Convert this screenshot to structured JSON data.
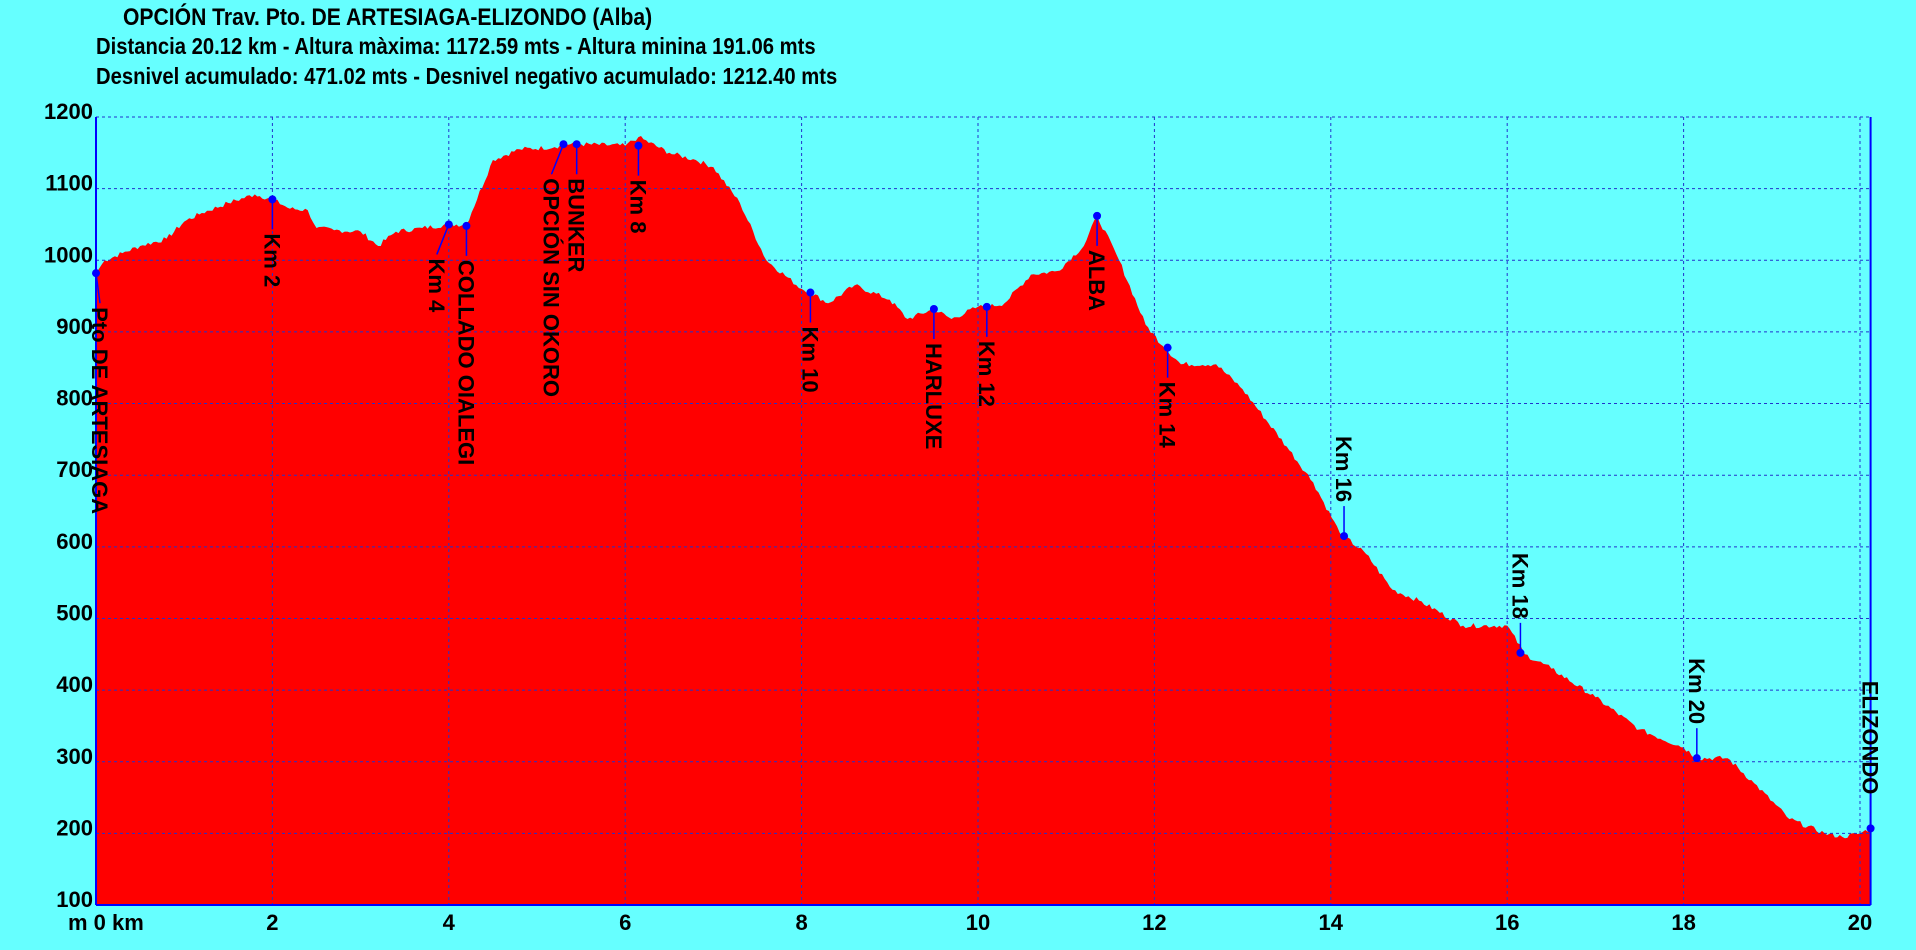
{
  "header": {
    "title": "OPCIÓN Trav. Pto. DE ARTESIAGA-ELIZONDO (Alba)",
    "line2": "Distancia 20.12 km - Altura màxima: 1172.59 mts - Altura minina 191.06 mts",
    "line3": "Desnivel acumulado: 471.02 mts - Desnivel negativo acumulado: 1212.40 mts"
  },
  "chart_data": {
    "type": "area",
    "title": "OPCIÓN Trav. Pto. DE ARTESIAGA-ELIZONDO (Alba)",
    "xlabel": "km",
    "ylabel": "m",
    "x_first_tick_label": "m 0 km",
    "xlim": [
      0,
      20.12
    ],
    "ylim": [
      100,
      1200
    ],
    "xticks": [
      0,
      2,
      4,
      6,
      8,
      10,
      12,
      14,
      16,
      18,
      20
    ],
    "yticks": [
      100,
      200,
      300,
      400,
      500,
      600,
      700,
      800,
      900,
      1000,
      1100,
      1200
    ],
    "grid": true,
    "colors": {
      "background": "#66ffff",
      "fill": "#ff0000",
      "grid": "#2233cc",
      "axis": "#0000ff",
      "marker": "#0000ff"
    },
    "x": [
      0,
      0.1,
      0.3,
      0.5,
      0.8,
      1.0,
      1.2,
      1.5,
      1.8,
      2.0,
      2.2,
      2.4,
      2.5,
      2.7,
      3.0,
      3.2,
      3.4,
      3.7,
      4.0,
      4.2,
      4.5,
      4.8,
      5.2,
      5.3,
      5.5,
      6.0,
      6.15,
      6.5,
      6.8,
      7.0,
      7.3,
      7.6,
      8.0,
      8.1,
      8.3,
      8.6,
      9.0,
      9.2,
      9.5,
      9.7,
      10.0,
      10.1,
      10.3,
      10.6,
      10.9,
      11.2,
      11.35,
      11.6,
      11.9,
      12.1,
      12.3,
      12.7,
      13.0,
      13.5,
      13.8,
      14.1,
      14.4,
      14.7,
      15.0,
      15.5,
      16.0,
      16.2,
      16.5,
      17.0,
      17.5,
      18.0,
      18.15,
      18.5,
      18.8,
      19.2,
      19.6,
      19.8,
      20.0,
      20.12
    ],
    "y": [
      982,
      1000,
      1010,
      1020,
      1030,
      1054,
      1066,
      1080,
      1092,
      1085,
      1072,
      1070,
      1045,
      1042,
      1040,
      1020,
      1040,
      1045,
      1050,
      1050,
      1140,
      1155,
      1158,
      1162,
      1162,
      1160,
      1172,
      1150,
      1140,
      1130,
      1080,
      1000,
      960,
      955,
      940,
      965,
      945,
      918,
      932,
      918,
      935,
      935,
      940,
      980,
      985,
      1020,
      1062,
      1000,
      910,
      880,
      855,
      855,
      820,
      740,
      690,
      620,
      590,
      540,
      525,
      490,
      490,
      450,
      430,
      390,
      345,
      320,
      305,
      305,
      270,
      220,
      200,
      195,
      200,
      207
    ],
    "waypoints": [
      {
        "label": "Pto DE ARTESIAGA",
        "km": 0,
        "elev": 982,
        "side": "below"
      },
      {
        "label": "Km  2",
        "km": 2.0,
        "elev": 1085,
        "side": "below"
      },
      {
        "label": "Km  4",
        "km": 4.0,
        "elev": 1050,
        "side": "below"
      },
      {
        "label": "COLLADO OIALEGI",
        "km": 4.2,
        "elev": 1048,
        "side": "below"
      },
      {
        "label": "OPCIÓN SIN OKORO",
        "km": 5.3,
        "elev": 1162,
        "side": "below"
      },
      {
        "label": "BUNKER",
        "km": 5.45,
        "elev": 1162,
        "side": "below"
      },
      {
        "label": "Km  8",
        "km": 6.15,
        "elev": 1160,
        "side": "below"
      },
      {
        "label": "Km 10",
        "km": 8.1,
        "elev": 955,
        "side": "below"
      },
      {
        "label": "HARLUXE",
        "km": 9.5,
        "elev": 932,
        "side": "below"
      },
      {
        "label": "Km 12",
        "km": 10.1,
        "elev": 935,
        "side": "below"
      },
      {
        "label": "ALBA",
        "km": 11.35,
        "elev": 1062,
        "side": "below"
      },
      {
        "label": "Km 14",
        "km": 12.15,
        "elev": 878,
        "side": "below"
      },
      {
        "label": "Km 16",
        "km": 14.15,
        "elev": 615,
        "side": "above"
      },
      {
        "label": "Km 18",
        "km": 16.15,
        "elev": 452,
        "side": "above"
      },
      {
        "label": "Km 20",
        "km": 18.15,
        "elev": 305,
        "side": "above"
      },
      {
        "label": "ELIZONDO",
        "km": 20.12,
        "elev": 207,
        "side": "above"
      }
    ]
  }
}
